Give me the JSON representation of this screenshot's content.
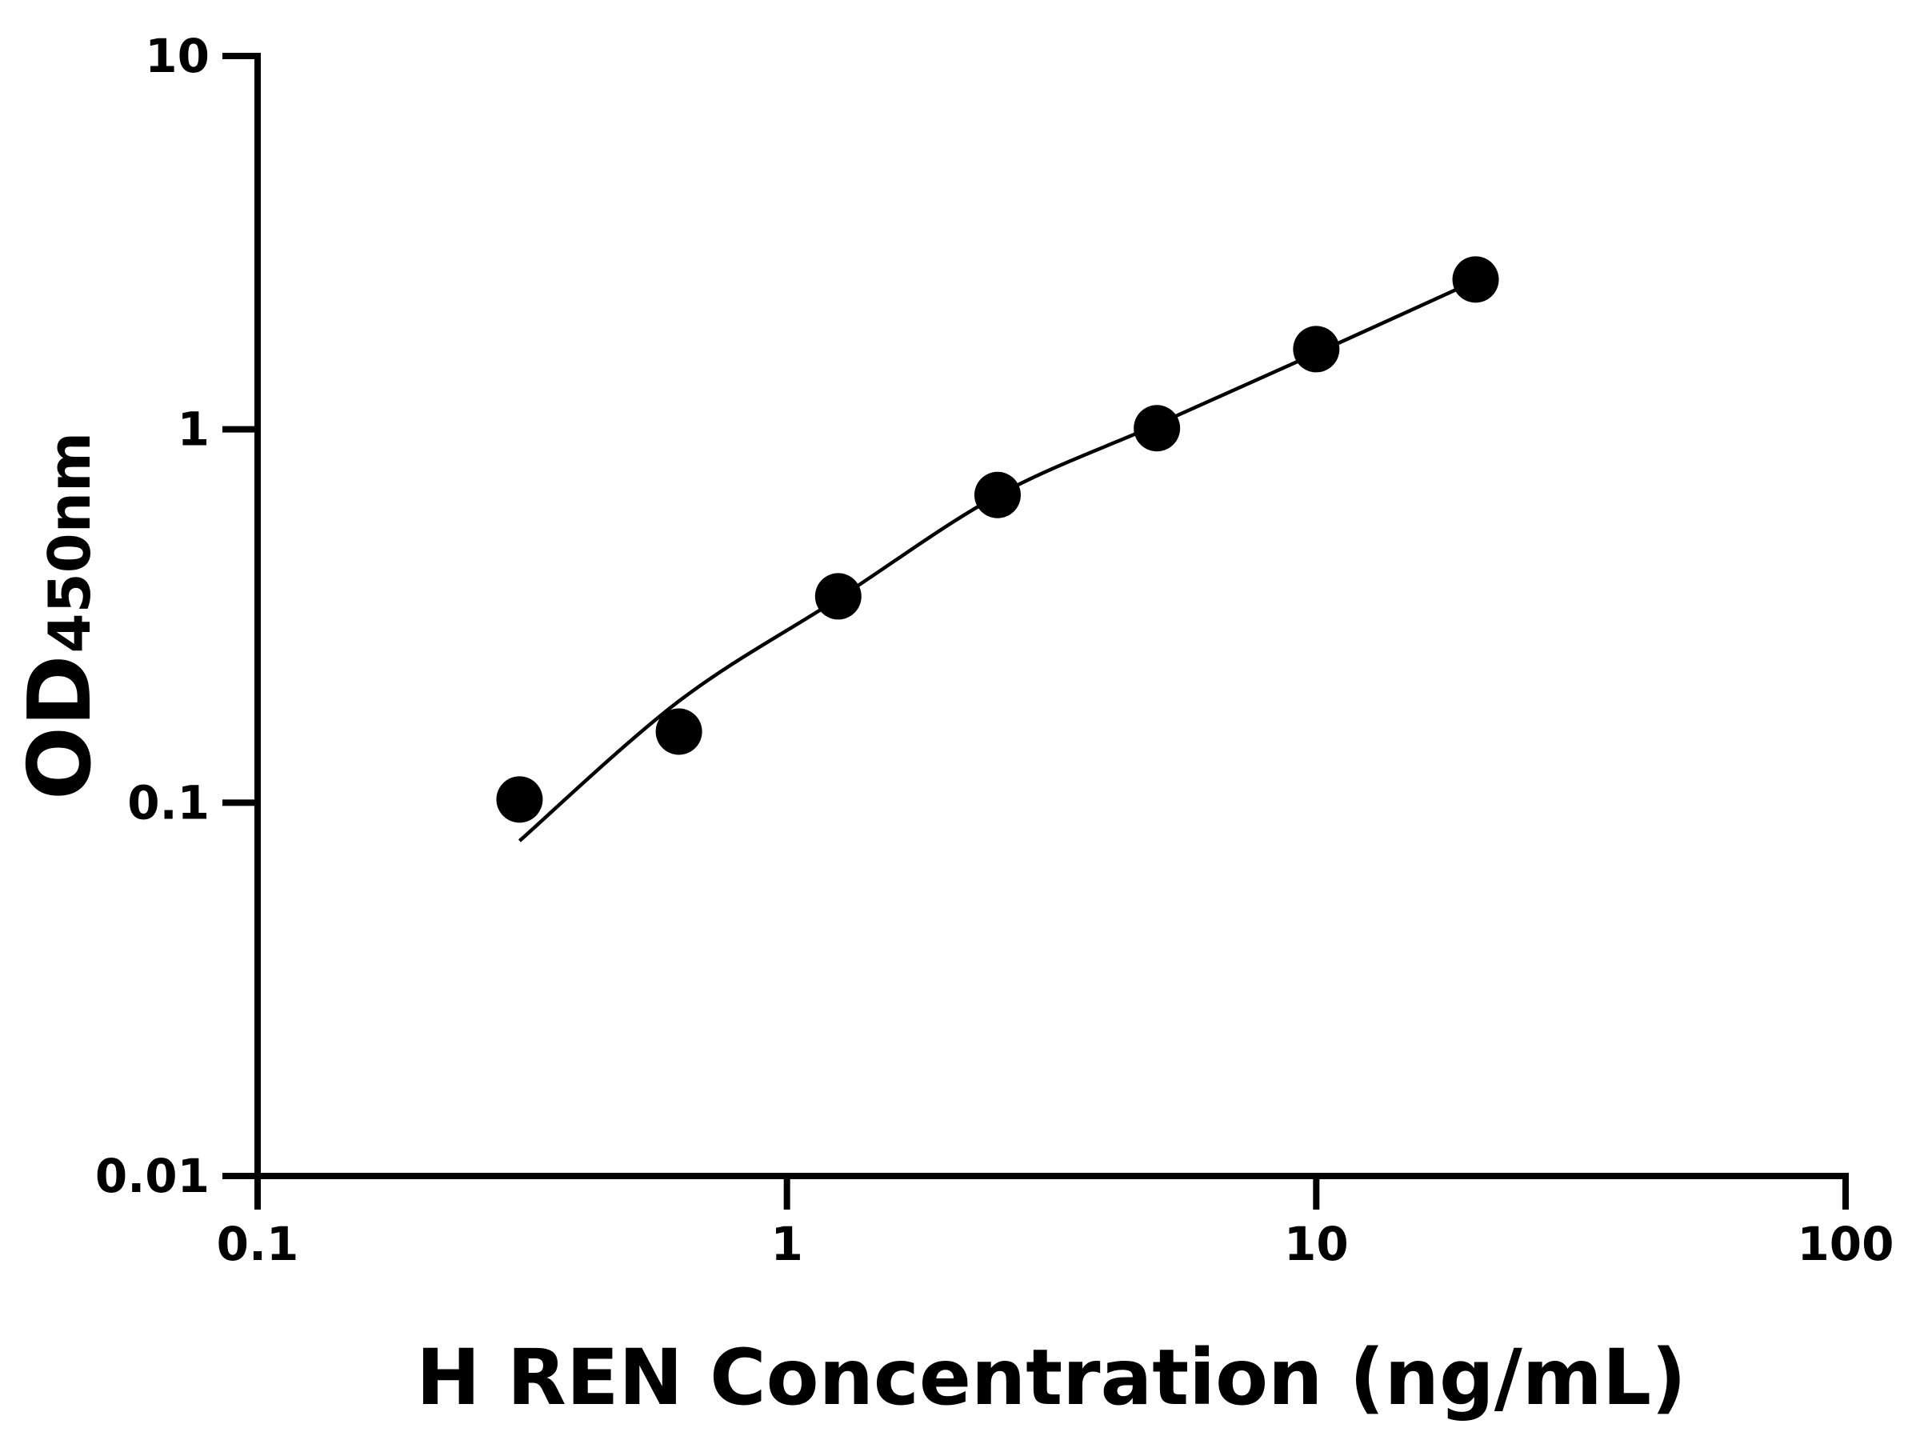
{
  "chart_data": {
    "type": "scatter",
    "xlabel": "H REN Concentration (ng/mL)",
    "ylabel_main": "OD",
    "ylabel_sub": "450nm",
    "x_scale": "log",
    "y_scale": "log",
    "xlim": [
      0.1,
      100
    ],
    "ylim": [
      0.01,
      10
    ],
    "x_ticks": [
      0.1,
      1,
      10,
      100
    ],
    "x_tick_labels": [
      "0.1",
      "1",
      "10",
      "100"
    ],
    "y_ticks": [
      0.01,
      0.1,
      1,
      10
    ],
    "y_tick_labels": [
      "0.01",
      "0.1",
      "1",
      "10"
    ],
    "grid": false,
    "colors": {
      "points": "#000000",
      "curve": "#000000",
      "axes": "#000000"
    },
    "points": {
      "x": [
        0.3125,
        0.625,
        1.25,
        2.5,
        5,
        10,
        20
      ],
      "y": [
        0.102,
        0.155,
        0.357,
        0.667,
        1.007,
        1.64,
        2.52
      ]
    },
    "fit_curve": {
      "x": [
        0.3125,
        0.625,
        1.25,
        2.5,
        5,
        10,
        20
      ],
      "y": [
        0.079,
        0.187,
        0.352,
        0.665,
        1.03,
        1.6,
        2.5
      ]
    }
  }
}
